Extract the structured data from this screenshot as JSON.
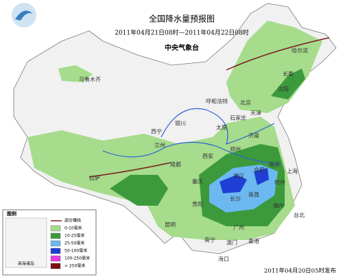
{
  "header": {
    "title": "全国降水量预报图",
    "period": "2011年04月21日08时—2011年04月22日08时",
    "issuer": "中央气象台"
  },
  "cities": [
    "乌鲁木齐",
    "哈尔滨",
    "长春",
    "沈阳",
    "北京",
    "天津",
    "呼和浩特",
    "石家庄",
    "太原",
    "济南",
    "银川",
    "兰州",
    "西宁",
    "西安",
    "郑州",
    "合肥",
    "南京",
    "上海",
    "杭州",
    "武汉",
    "长沙",
    "南昌",
    "成都",
    "重庆",
    "拉萨",
    "贵阳",
    "昆明",
    "南宁",
    "广州",
    "福州",
    "台北",
    "香港",
    "澳门",
    "海口"
  ],
  "legend": {
    "title": "图例",
    "trough": "高空槽线",
    "inset": "南海诸岛",
    "items": [
      {
        "label": "0-10毫米",
        "color": "#a6dc8c"
      },
      {
        "label": "10-25毫米",
        "color": "#3c9a3c"
      },
      {
        "label": "25-50毫米",
        "color": "#6cb8f0"
      },
      {
        "label": "50-100毫米",
        "color": "#1f3fd4"
      },
      {
        "label": "100-250毫米",
        "color": "#e83ce0"
      },
      {
        "label": "> 250毫米",
        "color": "#7a1010"
      }
    ]
  },
  "footer": "2011年04月20日05时发布"
}
